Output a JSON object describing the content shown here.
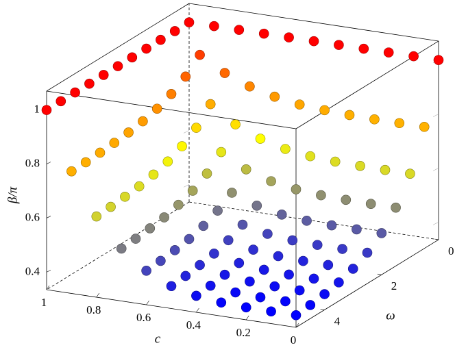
{
  "chart_data": {
    "type": "scatter3d",
    "xlabel": "c",
    "ylabel": "ω",
    "zlabel": "β/π",
    "c": [
      0,
      0.1,
      0.2,
      0.3,
      0.4,
      0.5,
      0.6,
      0.7,
      0.8,
      0.9,
      1
    ],
    "omega": [
      0,
      0.5,
      1,
      1.5,
      2,
      2.5,
      3,
      3.5,
      4,
      4.5,
      5
    ],
    "z": [
      [
        1,
        1,
        1,
        1,
        1,
        1,
        1,
        1,
        1,
        1,
        1
      ],
      [
        0.785,
        0.785,
        0.785,
        0.787,
        0.791,
        0.798,
        0.813,
        0.837,
        0.873,
        0.926,
        1
      ],
      [
        0.644,
        0.644,
        0.645,
        0.647,
        0.653,
        0.666,
        0.69,
        0.729,
        0.79,
        0.878,
        1
      ],
      [
        0.551,
        0.551,
        0.552,
        0.555,
        0.563,
        0.579,
        0.609,
        0.659,
        0.735,
        0.846,
        1
      ],
      [
        0.489,
        0.489,
        0.49,
        0.493,
        0.502,
        0.521,
        0.555,
        0.612,
        0.699,
        0.824,
        1
      ],
      [
        0.449,
        0.449,
        0.45,
        0.453,
        0.463,
        0.483,
        0.521,
        0.581,
        0.675,
        0.81,
        1
      ],
      [
        0.422,
        0.422,
        0.423,
        0.427,
        0.437,
        0.458,
        0.497,
        0.561,
        0.659,
        0.801,
        1
      ],
      [
        0.404,
        0.404,
        0.405,
        0.409,
        0.42,
        0.441,
        0.481,
        0.547,
        0.648,
        0.795,
        1
      ],
      [
        0.393,
        0.393,
        0.394,
        0.398,
        0.409,
        0.431,
        0.472,
        0.539,
        0.642,
        0.791,
        1
      ],
      [
        0.385,
        0.385,
        0.386,
        0.39,
        0.401,
        0.423,
        0.465,
        0.533,
        0.637,
        0.788,
        1
      ],
      [
        0.38,
        0.38,
        0.381,
        0.385,
        0.396,
        0.418,
        0.461,
        0.529,
        0.634,
        0.787,
        1
      ]
    ],
    "xlim": [
      0,
      1
    ],
    "ylim": [
      0,
      5
    ],
    "zlim": [
      0.335,
      1.07
    ],
    "xticks": [
      1,
      0.8,
      0.6,
      0.4,
      0.2,
      0
    ],
    "yticks": [
      0,
      2,
      4
    ],
    "zticks": [
      0.4,
      0.6,
      0.8,
      1
    ],
    "colormap": [
      "#0000ff",
      "#ffff00",
      "#ff0000"
    ]
  }
}
